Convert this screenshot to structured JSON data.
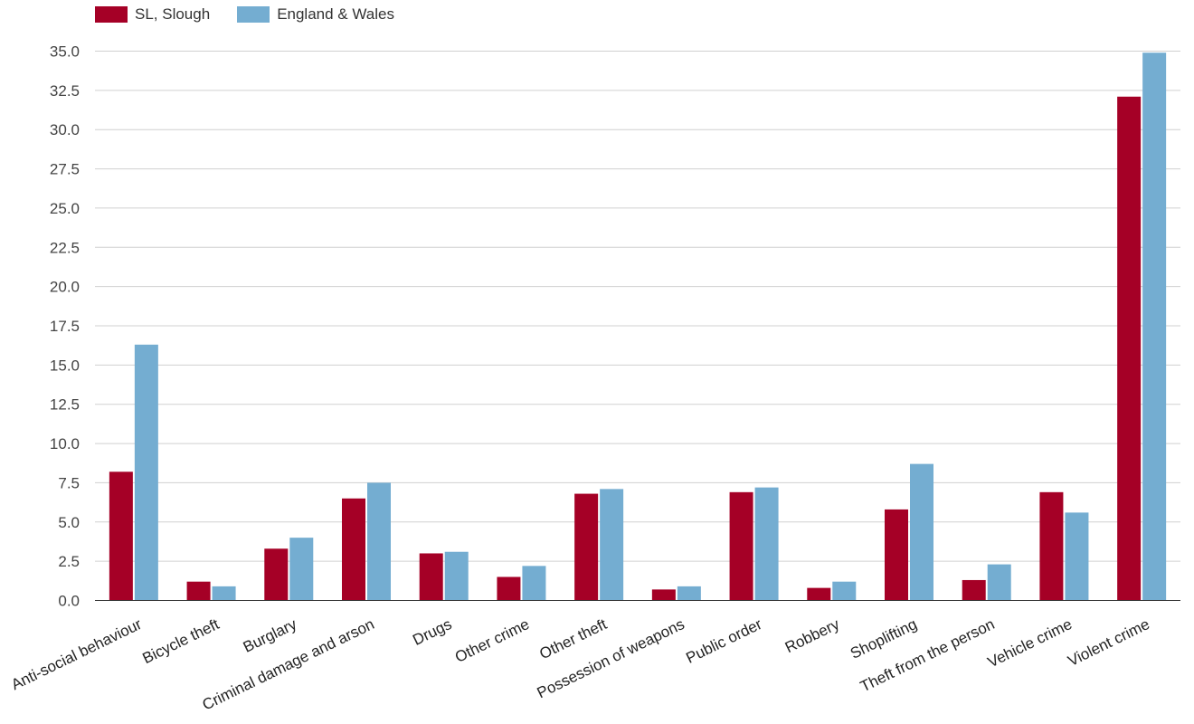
{
  "chart_data": {
    "type": "bar",
    "categories": [
      "Anti-social behaviour",
      "Bicycle theft",
      "Burglary",
      "Criminal damage and arson",
      "Drugs",
      "Other crime",
      "Other theft",
      "Possession of weapons",
      "Public order",
      "Robbery",
      "Shoplifting",
      "Theft from the person",
      "Vehicle crime",
      "Violent crime"
    ],
    "series": [
      {
        "name": "SL, Slough",
        "color": "#a50026",
        "values": [
          8.2,
          1.2,
          3.3,
          6.5,
          3.0,
          1.5,
          6.8,
          0.7,
          6.9,
          0.8,
          5.8,
          1.3,
          6.9,
          32.1
        ]
      },
      {
        "name": "England & Wales",
        "color": "#74add1",
        "values": [
          16.3,
          0.9,
          4.0,
          7.5,
          3.1,
          2.2,
          7.1,
          0.9,
          7.2,
          1.2,
          8.7,
          2.3,
          5.6,
          34.9
        ]
      }
    ],
    "yticks": [
      "0.0",
      "2.5",
      "5.0",
      "7.5",
      "10.0",
      "12.5",
      "15.0",
      "17.5",
      "20.0",
      "22.5",
      "25.0",
      "27.5",
      "30.0",
      "32.5",
      "35.0"
    ],
    "ylim": [
      0,
      35
    ],
    "grid": true,
    "legend_position": "top-left",
    "title": "",
    "xlabel": "",
    "ylabel": ""
  }
}
